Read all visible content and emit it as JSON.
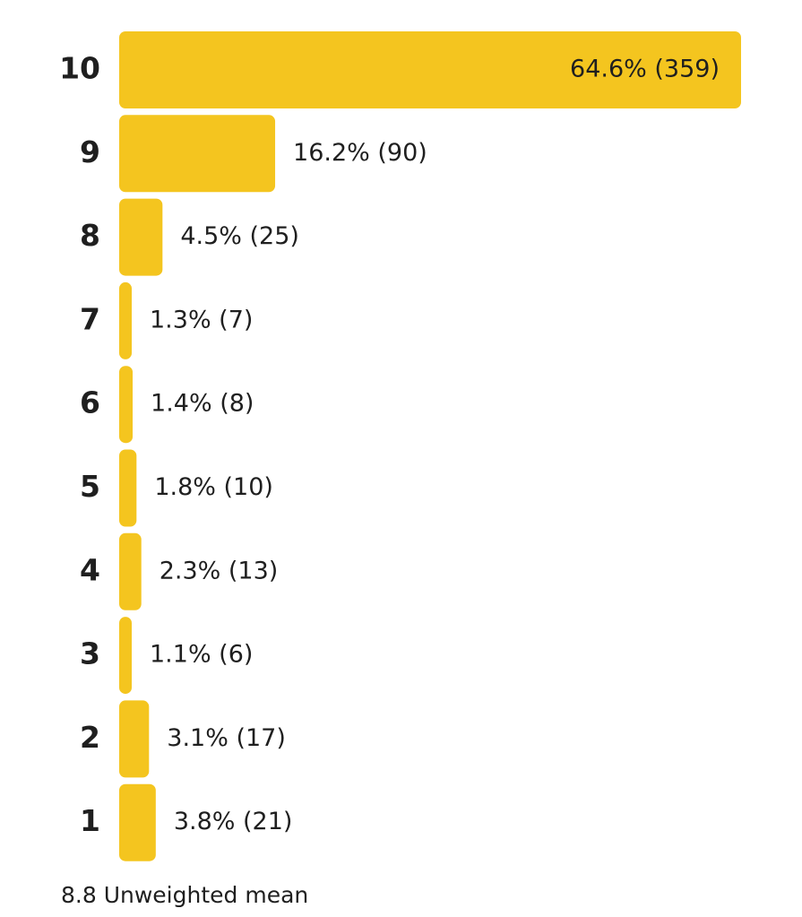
{
  "chart_data": {
    "type": "bar",
    "orientation": "horizontal",
    "categories": [
      "10",
      "9",
      "8",
      "7",
      "6",
      "5",
      "4",
      "3",
      "2",
      "1"
    ],
    "values": [
      64.6,
      16.2,
      4.5,
      1.3,
      1.4,
      1.8,
      2.3,
      1.1,
      3.1,
      3.8
    ],
    "value_labels": [
      "64.6% (359)",
      "16.2% (90)",
      "4.5% (25)",
      "1.3% (7)",
      "1.4% (8)",
      "1.8% (10)",
      "2.3% (13)",
      "1.1% (6)",
      "3.1% (17)",
      "3.8% (21)"
    ],
    "color": "#f4c51f",
    "xlim": [
      0,
      64.6
    ],
    "annotation": "8.8 Unweighted mean"
  }
}
